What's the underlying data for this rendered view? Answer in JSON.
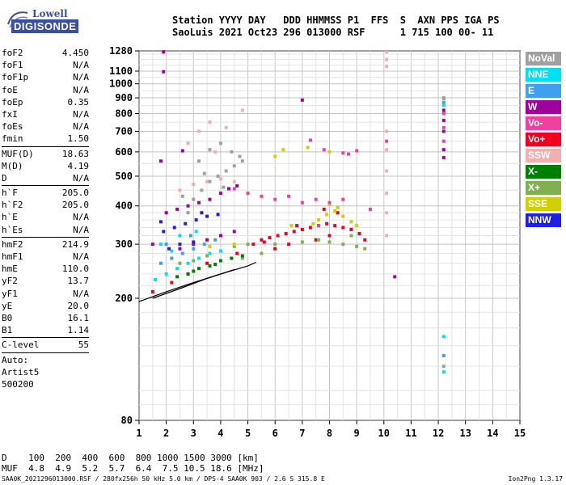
{
  "logo": {
    "line1": "Lowell",
    "line2": "DIGISONDE"
  },
  "header": {
    "line1": "Station YYYY DAY   DDD HHMMSS P1  FFS  S  AXN PPS IGA PS",
    "line2": "SaoLuis 2021 Oct23 296 013000 RSF      1 715 100 00- 11"
  },
  "params": [
    {
      "k": "foF2",
      "v": "4.450"
    },
    {
      "k": "foF1",
      "v": "N/A"
    },
    {
      "k": "foF1p",
      "v": "N/A"
    },
    {
      "k": "foE",
      "v": "N/A"
    },
    {
      "k": "foEp",
      "v": "0.35"
    },
    {
      "k": "fxI",
      "v": "N/A"
    },
    {
      "k": "foEs",
      "v": "N/A"
    },
    {
      "k": "fmin",
      "v": "1.50"
    },
    {
      "sep": true
    },
    {
      "k": "MUF(D)",
      "v": "18.63"
    },
    {
      "k": "M(D)",
      "v": "4.19"
    },
    {
      "k": "D",
      "v": "N/A"
    },
    {
      "sep": true
    },
    {
      "k": "h`F",
      "v": "205.0"
    },
    {
      "k": "h`F2",
      "v": "205.0"
    },
    {
      "k": "h`E",
      "v": "N/A"
    },
    {
      "k": "h`Es",
      "v": "N/A"
    },
    {
      "sep": true
    },
    {
      "k": "hmF2",
      "v": "214.9"
    },
    {
      "k": "hmF1",
      "v": "N/A"
    },
    {
      "k": "hmE",
      "v": "110.0"
    },
    {
      "k": "yF2",
      "v": "13.7"
    },
    {
      "k": "yF1",
      "v": "N/A"
    },
    {
      "k": "yE",
      "v": "20.0"
    },
    {
      "k": "B0",
      "v": "16.1"
    },
    {
      "k": "B1",
      "v": "1.14"
    },
    {
      "sep": true
    },
    {
      "k": "C-level",
      "v": "55"
    },
    {
      "sep": true
    },
    {
      "k": "Auto:",
      "v": ""
    },
    {
      "k": "Artist5",
      "v": ""
    },
    {
      "k": "500200",
      "v": ""
    }
  ],
  "legend": [
    {
      "label": "NoVal",
      "color": "#a0a0a0"
    },
    {
      "label": "NNE",
      "color": "#00e0f0"
    },
    {
      "label": "E",
      "color": "#40a0f0"
    },
    {
      "label": "W",
      "color": "#a000a0"
    },
    {
      "label": "Vo-",
      "color": "#f040a0"
    },
    {
      "label": "Vo+",
      "color": "#f00020"
    },
    {
      "label": "SSW",
      "color": "#f0b0b0"
    },
    {
      "label": "X-",
      "color": "#008000"
    },
    {
      "label": "X+",
      "color": "#80b050"
    },
    {
      "label": "SSE",
      "color": "#d0d000"
    },
    {
      "label": "NNW",
      "color": "#2020e0"
    }
  ],
  "dmuf": {
    "line1": "D    100  200  400  600  800 1000 1500 3000 [km]",
    "line2": "MUF  4.8  4.9  5.2  5.7  6.4  7.5 10.5 18.6 [MHz]"
  },
  "footer": "SAA0K_2021296013000.RSF / 280fx256h 50 kHz 5.0 km / DPS-4 SAA0K 903 / 2.6 S 315.8 E",
  "version": "Ion2Png 1.3.17",
  "chart_data": {
    "type": "scatter",
    "title": "",
    "xlabel": "",
    "ylabel": "",
    "xlim": [
      1,
      15
    ],
    "ylim": [
      80,
      1280
    ],
    "y_scale": "log",
    "x_ticks": [
      1,
      2,
      3,
      4,
      5,
      6,
      7,
      8,
      9,
      10,
      11,
      12,
      13,
      14,
      15
    ],
    "y_ticks": [
      80,
      200,
      300,
      400,
      500,
      600,
      700,
      800,
      900,
      1000,
      1100,
      1280
    ],
    "grid": true,
    "series": [
      {
        "name": "Vo+",
        "color": "#f00020",
        "points": [
          [
            5.2,
            300
          ],
          [
            5.5,
            310
          ],
          [
            5.8,
            315
          ],
          [
            6.1,
            320
          ],
          [
            6.4,
            325
          ],
          [
            6.7,
            330
          ],
          [
            7.0,
            335
          ],
          [
            7.3,
            340
          ],
          [
            7.6,
            345
          ],
          [
            7.9,
            350
          ],
          [
            8.2,
            345
          ],
          [
            8.5,
            340
          ],
          [
            8.8,
            335
          ],
          [
            9.1,
            325
          ],
          [
            9.3,
            310
          ],
          [
            6.0,
            290
          ],
          [
            6.5,
            300
          ],
          [
            7.5,
            310
          ],
          [
            8.0,
            320
          ],
          [
            5.6,
            305
          ],
          [
            6.8,
            345
          ],
          [
            7.8,
            390
          ],
          [
            8.3,
            380
          ],
          [
            4.6,
            280
          ],
          [
            3.5,
            260
          ],
          [
            2.8,
            240
          ],
          [
            2.2,
            225
          ],
          [
            1.5,
            210
          ]
        ]
      },
      {
        "name": "W",
        "color": "#a000a0",
        "points": [
          [
            2.0,
            380
          ],
          [
            2.4,
            390
          ],
          [
            2.8,
            400
          ],
          [
            3.2,
            410
          ],
          [
            3.6,
            420
          ],
          [
            4.0,
            440
          ],
          [
            4.3,
            455
          ],
          [
            4.6,
            465
          ],
          [
            1.9,
            1270
          ],
          [
            1.9,
            1095
          ],
          [
            7.0,
            885
          ],
          [
            12.2,
            820
          ],
          [
            12.2,
            760
          ],
          [
            12.2,
            700
          ],
          [
            12.2,
            610
          ],
          [
            12.2,
            575
          ],
          [
            10.4,
            235
          ],
          [
            1.5,
            300
          ],
          [
            2.5,
            290
          ],
          [
            3.0,
            300
          ],
          [
            3.5,
            310
          ],
          [
            4.0,
            320
          ],
          [
            4.5,
            330
          ],
          [
            2.6,
            605
          ],
          [
            1.8,
            560
          ]
        ]
      },
      {
        "name": "X+",
        "color": "#80b050",
        "points": [
          [
            2.5,
            260
          ],
          [
            3.0,
            265
          ],
          [
            3.5,
            275
          ],
          [
            4.0,
            285
          ],
          [
            4.5,
            295
          ],
          [
            5.0,
            300
          ],
          [
            6.0,
            300
          ],
          [
            7.0,
            305
          ],
          [
            8.0,
            305
          ],
          [
            8.5,
            300
          ],
          [
            9.0,
            295
          ],
          [
            9.3,
            290
          ],
          [
            5.5,
            280
          ],
          [
            4.8,
            270
          ],
          [
            8.8,
            320
          ],
          [
            7.6,
            310
          ]
        ]
      },
      {
        "name": "X-",
        "color": "#008000",
        "points": [
          [
            2.8,
            240
          ],
          [
            3.2,
            250
          ],
          [
            3.6,
            255
          ],
          [
            4.0,
            265
          ],
          [
            4.4,
            270
          ],
          [
            4.8,
            275
          ],
          [
            2.4,
            235
          ],
          [
            3.0,
            245
          ],
          [
            3.8,
            258
          ]
        ]
      },
      {
        "name": "SSE",
        "color": "#d0d000",
        "points": [
          [
            7.6,
            360
          ],
          [
            7.9,
            375
          ],
          [
            8.2,
            385
          ],
          [
            8.5,
            370
          ],
          [
            8.8,
            355
          ],
          [
            9.0,
            345
          ],
          [
            8.0,
            405
          ],
          [
            8.3,
            395
          ],
          [
            7.4,
            350
          ],
          [
            6.6,
            345
          ],
          [
            6.3,
            610
          ],
          [
            8.0,
            600
          ],
          [
            7.2,
            620
          ],
          [
            6.0,
            580
          ],
          [
            4.5,
            300
          ],
          [
            3.6,
            295
          ]
        ]
      },
      {
        "name": "Vo-",
        "color": "#f040a0",
        "points": [
          [
            6.5,
            430
          ],
          [
            7.0,
            410
          ],
          [
            7.5,
            420
          ],
          [
            8.0,
            410
          ],
          [
            8.5,
            420
          ],
          [
            6.0,
            420
          ],
          [
            5.5,
            430
          ],
          [
            5.0,
            440
          ],
          [
            4.5,
            455
          ],
          [
            7.3,
            655
          ],
          [
            7.8,
            610
          ],
          [
            8.7,
            590
          ],
          [
            9.0,
            605
          ],
          [
            8.5,
            595
          ],
          [
            12.2,
            800
          ],
          [
            12.2,
            720
          ],
          [
            12.2,
            650
          ],
          [
            10.1,
            650
          ],
          [
            9.5,
            390
          ],
          [
            7.6,
            345
          ]
        ]
      },
      {
        "name": "NNE",
        "color": "#00e0f0",
        "points": [
          [
            1.6,
            230
          ],
          [
            2.0,
            240
          ],
          [
            2.4,
            250
          ],
          [
            2.8,
            260
          ],
          [
            3.2,
            270
          ],
          [
            3.6,
            280
          ],
          [
            4.0,
            285
          ],
          [
            1.8,
            300
          ],
          [
            2.2,
            285
          ],
          [
            12.2,
            150
          ],
          [
            12.2,
            115
          ],
          [
            12.2,
            895
          ],
          [
            12.2,
            850
          ],
          [
            2.5,
            320
          ],
          [
            3.1,
            330
          ]
        ]
      },
      {
        "name": "E",
        "color": "#40a0f0",
        "points": [
          [
            1.8,
            260
          ],
          [
            2.2,
            270
          ],
          [
            2.6,
            280
          ],
          [
            3.0,
            290
          ],
          [
            3.4,
            300
          ],
          [
            3.8,
            310
          ],
          [
            12.2,
            870
          ],
          [
            12.2,
            130
          ],
          [
            2.0,
            300
          ],
          [
            2.9,
            320
          ]
        ]
      },
      {
        "name": "NNW",
        "color": "#2020e0",
        "points": [
          [
            1.9,
            330
          ],
          [
            2.3,
            340
          ],
          [
            2.7,
            350
          ],
          [
            3.1,
            360
          ],
          [
            3.5,
            370
          ],
          [
            3.9,
            375
          ],
          [
            2.1,
            290
          ],
          [
            2.5,
            300
          ],
          [
            3.0,
            305
          ],
          [
            1.8,
            355
          ],
          [
            3.3,
            380
          ]
        ]
      },
      {
        "name": "SSW",
        "color": "#f0b0b0",
        "points": [
          [
            10.1,
            1270
          ],
          [
            10.1,
            1200
          ],
          [
            10.1,
            1140
          ],
          [
            10.1,
            700
          ],
          [
            10.1,
            610
          ],
          [
            10.1,
            520
          ],
          [
            10.1,
            440
          ],
          [
            10.1,
            380
          ],
          [
            10.1,
            320
          ],
          [
            2.5,
            450
          ],
          [
            3.0,
            470
          ],
          [
            3.5,
            480
          ],
          [
            4.0,
            490
          ],
          [
            4.5,
            480
          ],
          [
            3.2,
            700
          ],
          [
            3.6,
            750
          ],
          [
            4.2,
            720
          ],
          [
            4.8,
            820
          ],
          [
            2.8,
            640
          ],
          [
            3.8,
            600
          ]
        ]
      },
      {
        "name": "NoVal",
        "color": "#a0a0a0",
        "points": [
          [
            3.0,
            420
          ],
          [
            3.3,
            450
          ],
          [
            3.6,
            480
          ],
          [
            3.9,
            500
          ],
          [
            4.2,
            520
          ],
          [
            4.5,
            540
          ],
          [
            4.8,
            560
          ],
          [
            2.8,
            380
          ],
          [
            3.2,
            560
          ],
          [
            3.6,
            610
          ],
          [
            4.0,
            640
          ],
          [
            4.4,
            600
          ],
          [
            4.7,
            580
          ],
          [
            3.4,
            510
          ],
          [
            4.1,
            460
          ],
          [
            2.6,
            430
          ],
          [
            12.2,
            120
          ],
          [
            12.2,
            900
          ]
        ]
      }
    ],
    "traces": [
      {
        "name": "O-trace",
        "color": "#000000",
        "points": [
          [
            1.0,
            195
          ],
          [
            2.0,
            210
          ],
          [
            3.0,
            225
          ],
          [
            4.0,
            240
          ],
          [
            5.0,
            255
          ],
          [
            5.3,
            262
          ]
        ]
      },
      {
        "name": "X-trace",
        "color": "#000000",
        "points": [
          [
            1.5,
            200
          ],
          [
            2.5,
            215
          ],
          [
            3.5,
            232
          ],
          [
            4.5,
            248
          ]
        ]
      }
    ]
  }
}
